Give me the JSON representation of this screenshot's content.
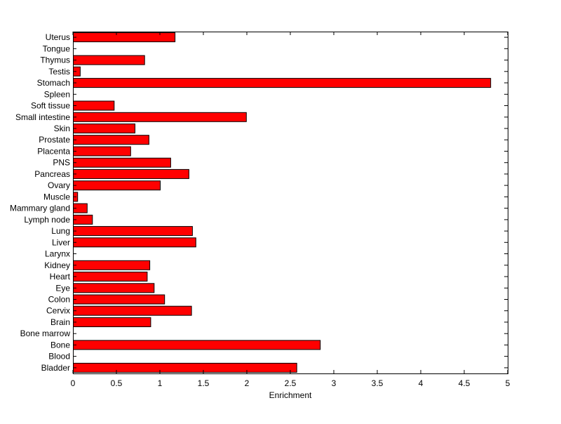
{
  "chart_data": {
    "type": "bar",
    "orientation": "horizontal",
    "title": "",
    "xlabel": "Enrichment",
    "ylabel": "",
    "xlim": [
      0,
      5
    ],
    "xticks": [
      "0",
      "0.5",
      "1",
      "1.5",
      "2",
      "2.5",
      "3",
      "3.5",
      "4",
      "4.5",
      "5"
    ],
    "grid": false,
    "bar_color": "#ff0000",
    "edge_color": "#000000",
    "categories": [
      "Bladder",
      "Blood",
      "Bone",
      "Bone marrow",
      "Brain",
      "Cervix",
      "Colon",
      "Eye",
      "Heart",
      "Kidney",
      "Larynx",
      "Liver",
      "Lung",
      "Lymph node",
      "Mammary gland",
      "Muscle",
      "Ovary",
      "Pancreas",
      "PNS",
      "Placenta",
      "Prostate",
      "Skin",
      "Small intestine",
      "Soft tissue",
      "Spleen",
      "Stomach",
      "Testis",
      "Thymus",
      "Tongue",
      "Uterus"
    ],
    "values": [
      2.57,
      0,
      2.84,
      0,
      0.89,
      1.36,
      1.05,
      0.93,
      0.85,
      0.88,
      0,
      1.41,
      1.37,
      0.22,
      0.16,
      0.05,
      1.0,
      1.33,
      1.12,
      0.66,
      0.87,
      0.71,
      1.99,
      0.47,
      0,
      4.8,
      0.08,
      0.82,
      0,
      1.17
    ]
  }
}
